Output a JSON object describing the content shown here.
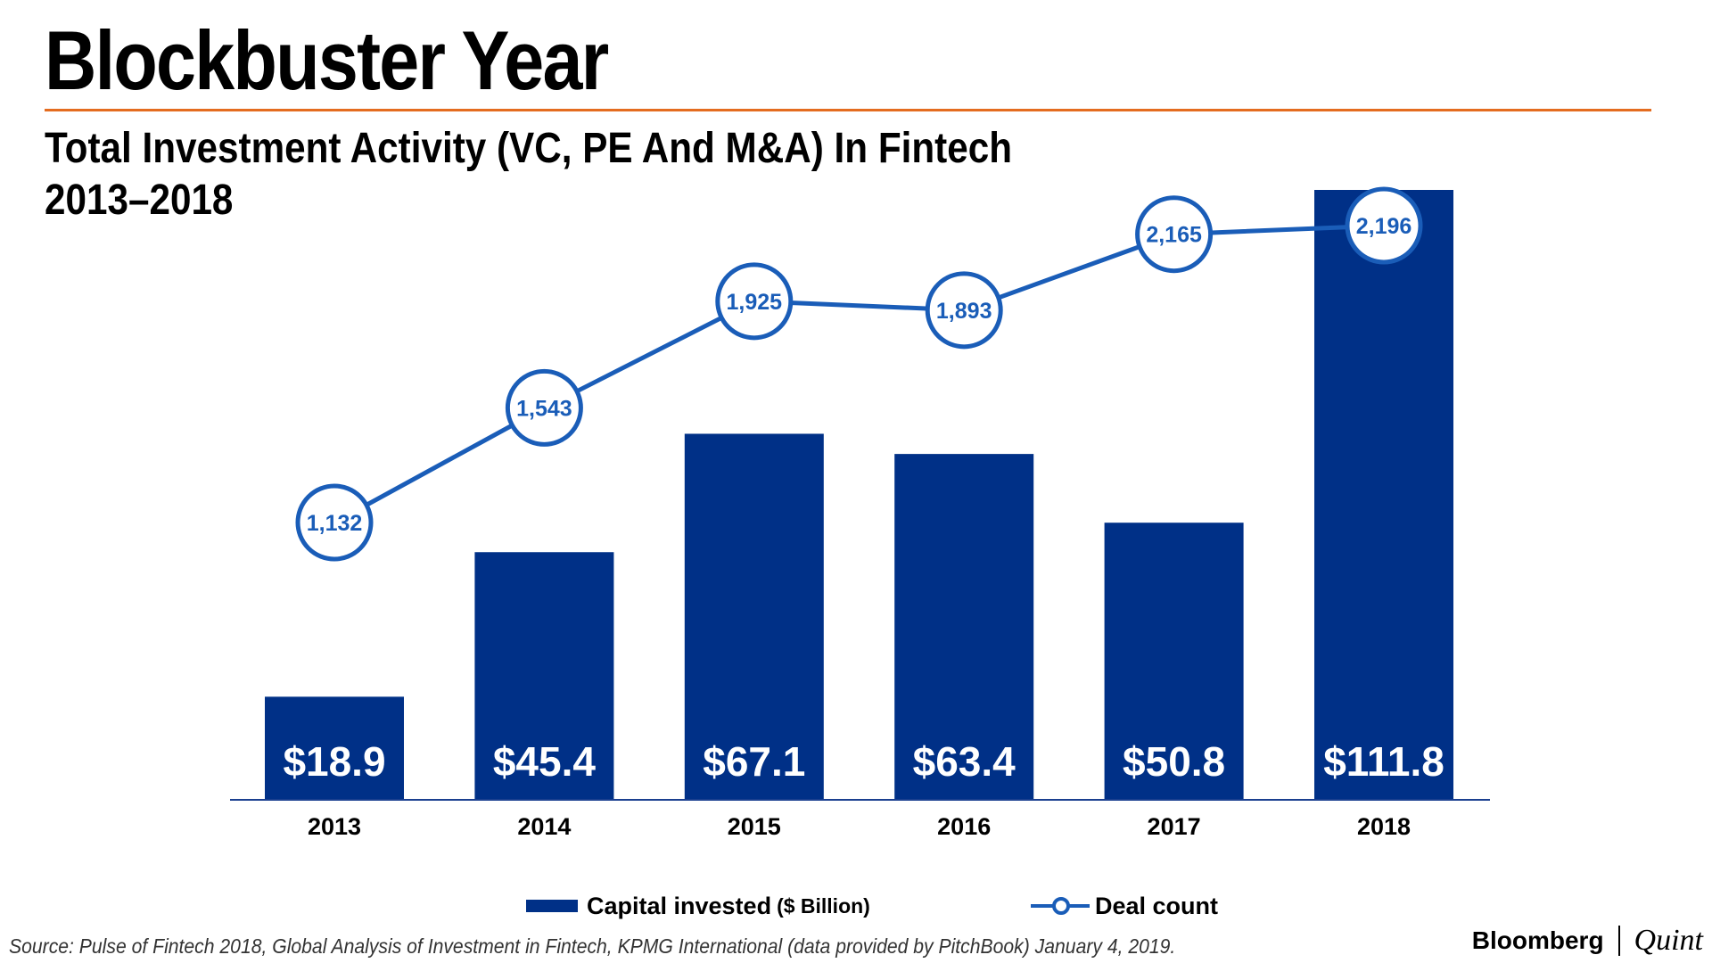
{
  "header": {
    "title": "Blockbuster Year",
    "subtitle_line1": "Total Investment Activity (VC, PE And M&A) In Fintech",
    "subtitle_line2": "2013–2018"
  },
  "colors": {
    "bar": "#003087",
    "line": "#1a5db8",
    "rule": "#e46c1f"
  },
  "chart_data": {
    "type": "bar",
    "title": "Total Investment Activity (VC, PE And M&A) In Fintech 2013–2018",
    "categories": [
      "2013",
      "2014",
      "2015",
      "2016",
      "2017",
      "2018"
    ],
    "series": [
      {
        "name": "Capital invested ($ Billion)",
        "type": "bar",
        "values": [
          18.9,
          45.4,
          67.1,
          63.4,
          50.8,
          111.8
        ],
        "labels": [
          "$18.9",
          "$45.4",
          "$67.1",
          "$63.4",
          "$50.8",
          "$111.8"
        ]
      },
      {
        "name": "Deal count",
        "type": "line",
        "values": [
          1132,
          1543,
          1925,
          1893,
          2165,
          2196
        ],
        "labels": [
          "1,132",
          "1,543",
          "1,925",
          "1,893",
          "2,165",
          "2,196"
        ]
      }
    ],
    "bar_ylim": [
      0,
      111.8
    ],
    "line_ylim": [
      700,
      2200
    ],
    "legend_position": "bottom"
  },
  "legend": {
    "bar_label": "Capital invested",
    "bar_unit": "($ Billion)",
    "line_label": "Deal count"
  },
  "footer": {
    "source": "Source: Pulse of Fintech 2018, Global Analysis of Investment in Fintech, KPMG International (data provided by PitchBook) January 4, 2019.",
    "brand_primary": "Bloomberg",
    "brand_secondary": "Quint"
  }
}
